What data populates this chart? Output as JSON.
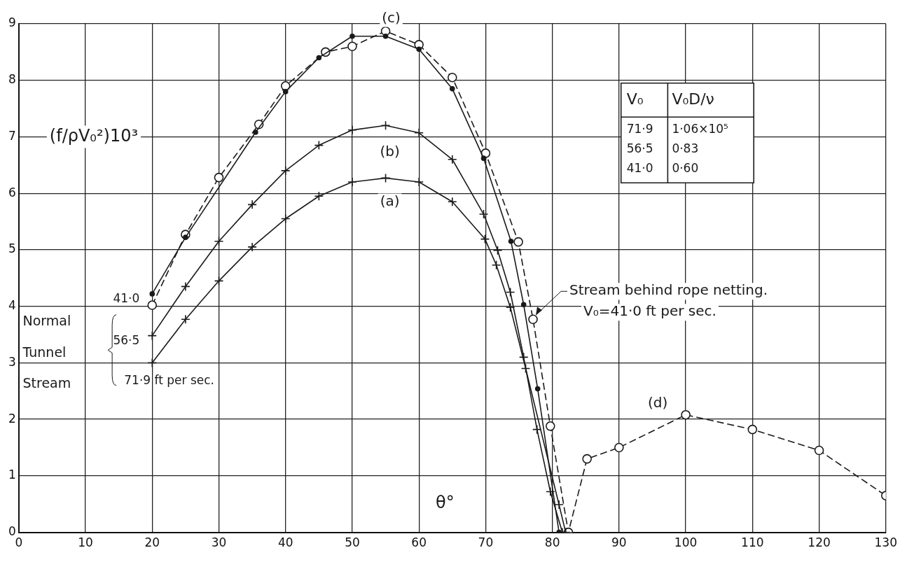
{
  "chart_data": {
    "type": "line",
    "xlabel": "θ°",
    "ylabel": "(f/ρV₀²)10³",
    "xlim": [
      0,
      130
    ],
    "xticks": [
      0,
      10,
      20,
      30,
      40,
      50,
      60,
      70,
      80,
      90,
      100,
      110,
      120,
      130
    ],
    "ylim": [
      0,
      9
    ],
    "yticks": [
      0,
      1,
      2,
      3,
      4,
      5,
      6,
      7,
      8,
      9
    ],
    "grid": true,
    "legend": false,
    "series": [
      {
        "name": "71·9 ft per sec.",
        "color": "#1a1a1a",
        "marker": "cross",
        "line_style": "solid",
        "x": [
          20,
          25,
          30,
          35,
          40,
          45,
          50,
          55,
          60,
          65,
          69.9,
          71.6,
          73.7,
          76,
          81,
          82
        ],
        "values": [
          3.0,
          3.77,
          4.45,
          5.05,
          5.55,
          5.95,
          6.2,
          6.27,
          6.2,
          5.85,
          5.19,
          4.73,
          3.98,
          2.9,
          0.49,
          0
        ]
      },
      {
        "name": "56·5",
        "color": "#1a1a1a",
        "marker": "cross",
        "line_style": "solid",
        "x": [
          20,
          25,
          30,
          35,
          40,
          45,
          50,
          55,
          60,
          65,
          69.7,
          71.8,
          73.7,
          75.7,
          77.7,
          79.7,
          81.5
        ],
        "values": [
          3.48,
          4.35,
          5.15,
          5.8,
          6.4,
          6.85,
          7.12,
          7.2,
          7.07,
          6.6,
          5.63,
          4.99,
          4.25,
          3.1,
          1.82,
          0.72,
          0
        ]
      },
      {
        "name": "41·0",
        "color": "#1a1a1a",
        "marker": "circle",
        "line_style": "solid",
        "x": [
          20,
          25,
          35.5,
          40,
          45,
          50,
          55,
          60,
          65,
          69.7,
          73.8,
          75.7,
          77.8,
          81
        ],
        "values": [
          4.22,
          5.22,
          7.08,
          7.8,
          8.4,
          8.78,
          8.78,
          8.55,
          7.85,
          6.62,
          5.15,
          4.03,
          2.54,
          0
        ]
      },
      {
        "color": "#1a1a1a",
        "marker": "circle",
        "line_style": "dashed",
        "x": [
          20,
          25,
          30,
          36,
          40,
          46,
          50,
          55,
          60,
          65,
          70,
          74.9,
          77.1,
          79.7,
          82.4,
          85.2,
          90,
          100,
          110,
          120,
          130
        ],
        "values": [
          4.02,
          5.27,
          6.28,
          7.22,
          7.9,
          8.5,
          8.6,
          8.87,
          8.63,
          8.05,
          6.71,
          5.14,
          3.77,
          1.88,
          0,
          1.3,
          1.5,
          2.08,
          1.82,
          1.45,
          0.65
        ]
      }
    ],
    "annotations": [
      {
        "text": "(a)",
        "x": 55,
        "y": 6.27
      },
      {
        "text": "(b)",
        "x": 55,
        "y": 7.2
      },
      {
        "text": "(c)",
        "x": 55,
        "y": 8.87
      },
      {
        "text": "(d)",
        "x": 100,
        "y": 2.08
      },
      {
        "text": "Stream behind rope netting. V₀=41·0 ft per sec.",
        "x": 77.1,
        "y": 3.77
      },
      "Normal",
      "Tunnel",
      "Stream",
      "V₀",
      "V₀D/ν",
      "71·9",
      "1·06×10⁵",
      "56·5",
      "0·83",
      "41·0",
      "0·60"
    ]
  }
}
